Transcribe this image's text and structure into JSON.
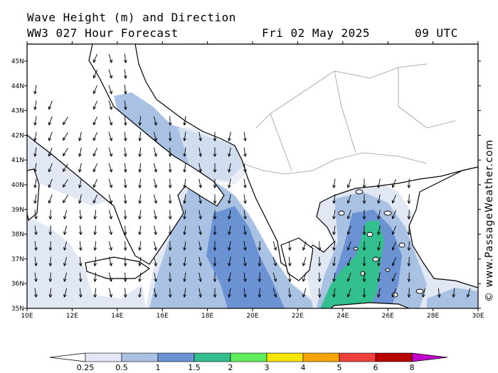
{
  "header": {
    "line1": "Wave Height (m) and Direction",
    "line2": "WW3 027 Hour Forecast",
    "date": "Fri 02 May 2025",
    "time": "09 UTC"
  },
  "credit": "© www.PassageWeather.com",
  "axes": {
    "lat_labels": [
      "45N",
      "44N",
      "43N",
      "42N",
      "41N",
      "40N",
      "39N",
      "38N",
      "37N",
      "36N",
      "35N"
    ],
    "lon_labels": [
      "10E",
      "12E",
      "14E",
      "16E",
      "18E",
      "20E",
      "22E",
      "24E",
      "26E",
      "28E",
      "30E"
    ]
  },
  "legend": {
    "labels": [
      "0.25",
      "0.5",
      "1",
      "1.5",
      "2",
      "3",
      "4",
      "5",
      "6",
      "8"
    ],
    "colors": [
      "#e1e8f4",
      "#a9c2e4",
      "#6b93d3",
      "#34c08e",
      "#61ee5d",
      "#f4e400",
      "#f7a300",
      "#ef3f3f",
      "#b90000",
      "#c000c8"
    ]
  },
  "wave_field_colors": {
    "lt025": "#ffffff",
    "b025_05": "#e1e8f4",
    "b05_1": "#a9c2e4",
    "b1_15": "#6b93d3",
    "b15_2": "#34c08e"
  }
}
